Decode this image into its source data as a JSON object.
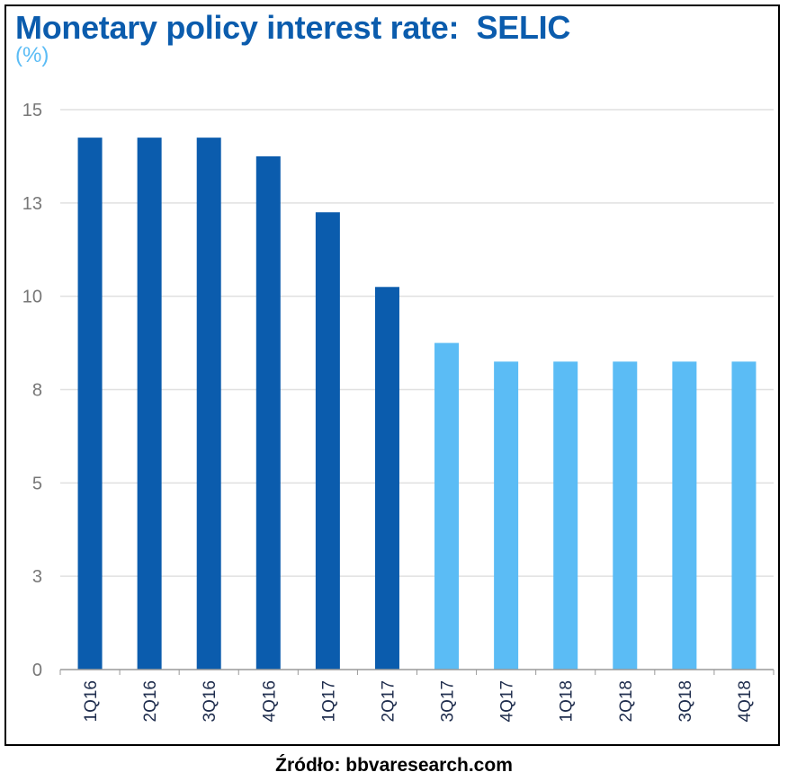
{
  "chart_data": {
    "type": "bar",
    "title": "Monetary policy interest rate:  SELIC",
    "ylabel": "(%)",
    "xlabel": "",
    "categories": [
      "1Q16",
      "2Q16",
      "3Q16",
      "4Q16",
      "1Q17",
      "2Q17",
      "3Q17",
      "4Q17",
      "1Q18",
      "2Q18",
      "3Q18",
      "4Q18"
    ],
    "values": [
      14.25,
      14.25,
      14.25,
      13.75,
      12.25,
      10.25,
      8.75,
      8.25,
      8.25,
      8.25,
      8.25,
      8.25
    ],
    "series_type": [
      "actual",
      "actual",
      "actual",
      "actual",
      "actual",
      "actual",
      "forecast",
      "forecast",
      "forecast",
      "forecast",
      "forecast",
      "forecast"
    ],
    "ylim": [
      0,
      15
    ],
    "yticks": [
      0,
      2.5,
      5,
      7.5,
      10,
      12.5,
      15
    ],
    "ytick_labels": [
      "0",
      "3",
      "5",
      "8",
      "10",
      "13",
      "15"
    ],
    "grid": true,
    "colors": {
      "actual": "#0b5cad",
      "forecast": "#5bbcf5",
      "title": "#0b5cad",
      "unit": "#5bbcf5",
      "grid": "#e0e0e0",
      "tick": "#777777"
    }
  },
  "source": "Źródło: bbvaresearch.com"
}
